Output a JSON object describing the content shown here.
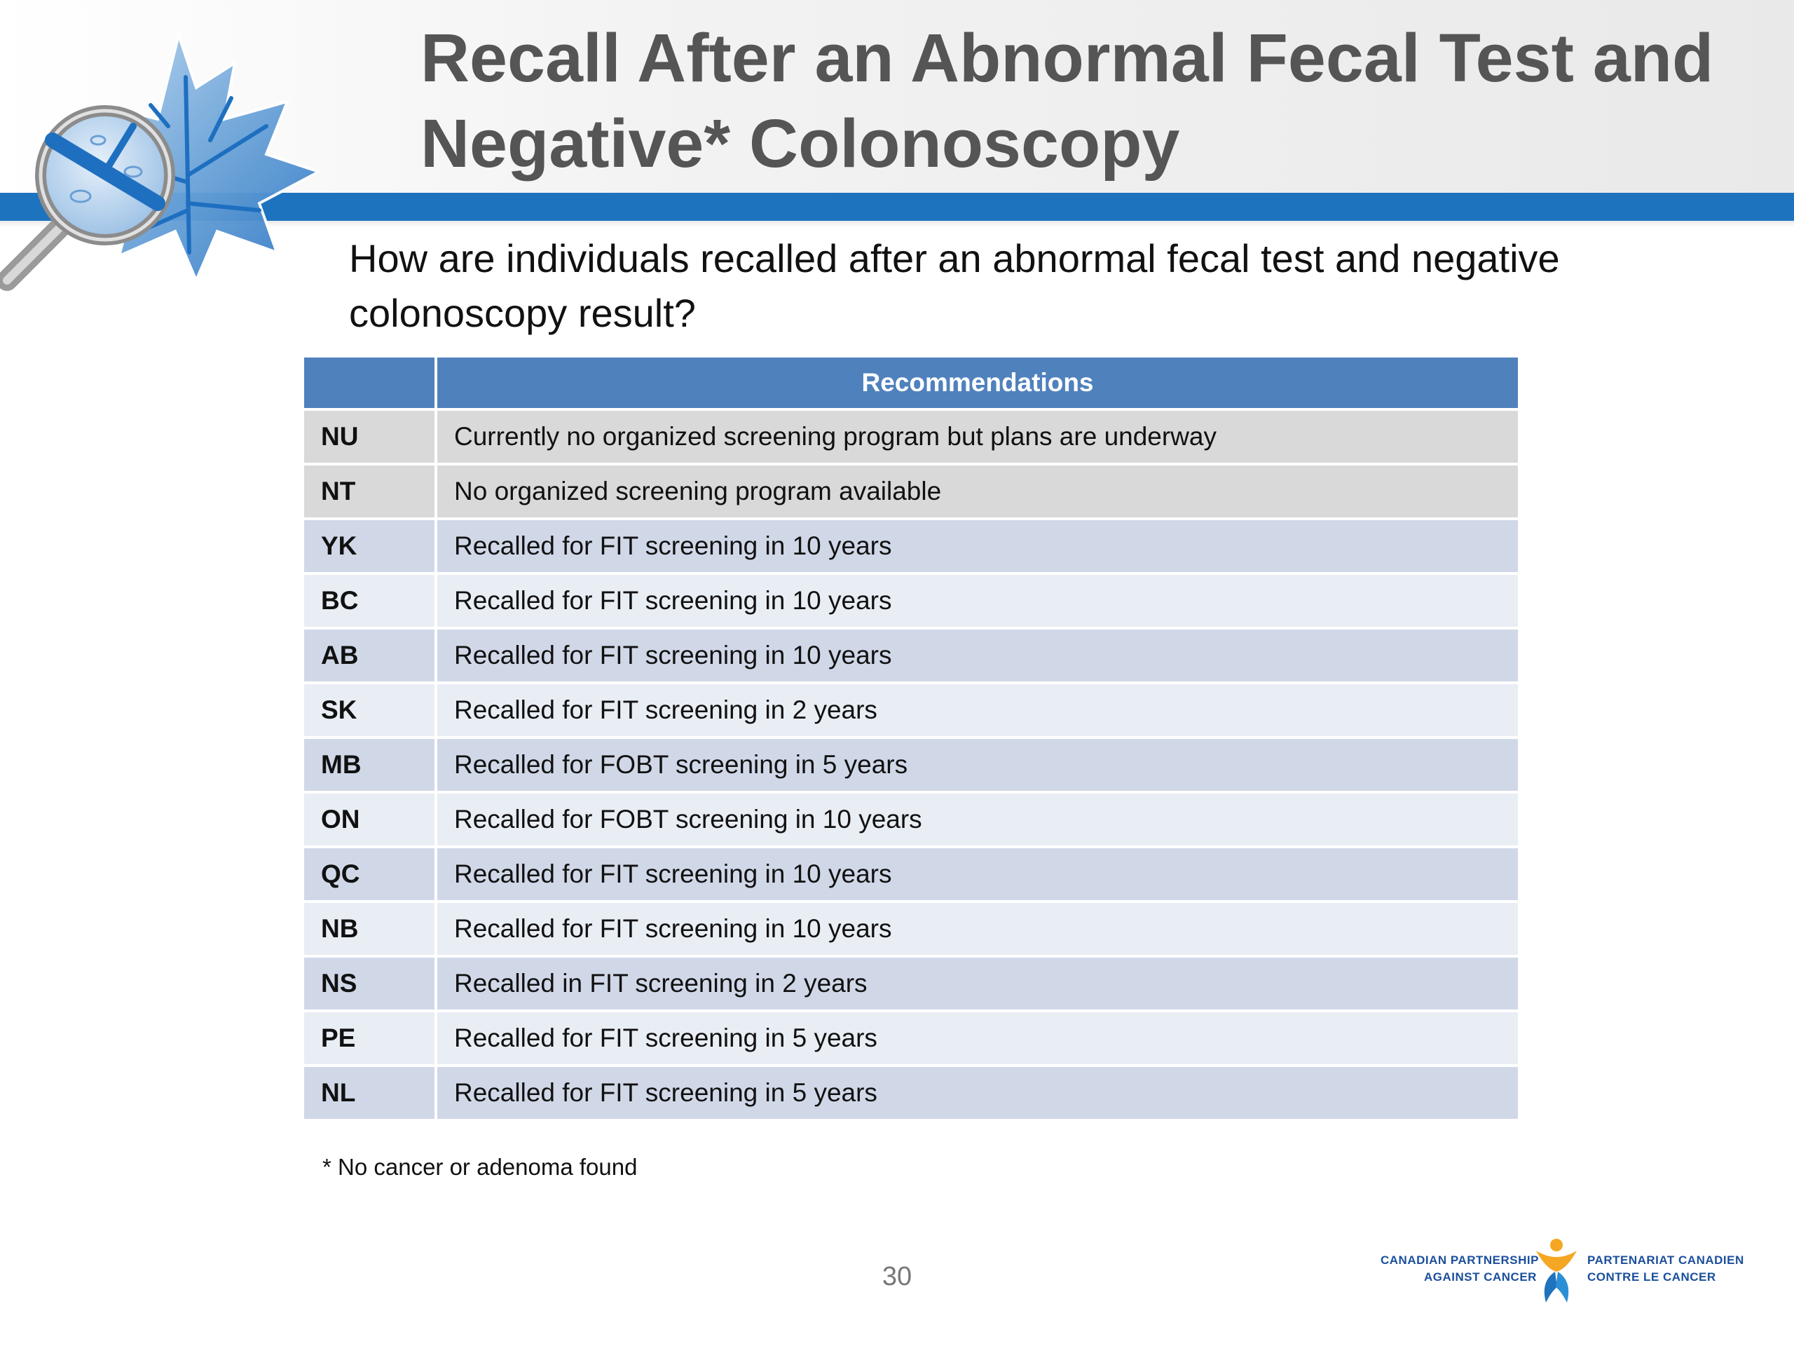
{
  "header": {
    "title": "Recall After an Abnormal Fecal Test and Negative* Colonoscopy"
  },
  "subtitle": "How are individuals recalled after an abnormal fecal test and negative colonoscopy result?",
  "table": {
    "column_headers": [
      "",
      "Recommendations"
    ],
    "rows": [
      {
        "code": "NU",
        "text": "Currently no organized screening program but plans are underway"
      },
      {
        "code": "NT",
        "text": "No organized screening program available"
      },
      {
        "code": "YK",
        "text": "Recalled for FIT screening in 10 years"
      },
      {
        "code": "BC",
        "text": "Recalled for FIT screening in 10 years"
      },
      {
        "code": "AB",
        "text": "Recalled for FIT screening in 10 years"
      },
      {
        "code": "SK",
        "text": "Recalled for FIT screening in 2 years"
      },
      {
        "code": "MB",
        "text": "Recalled for FOBT screening in 5 years"
      },
      {
        "code": "ON",
        "text": "Recalled for FOBT screening in 10 years"
      },
      {
        "code": "QC",
        "text": "Recalled for FIT screening in 10 years"
      },
      {
        "code": "NB",
        "text": "Recalled for FIT screening in 10 years"
      },
      {
        "code": "NS",
        "text": "Recalled in FIT screening in 2 years"
      },
      {
        "code": "PE",
        "text": "Recalled for FIT screening in 5 years"
      },
      {
        "code": "NL",
        "text": "Recalled for FIT screening in 5 years"
      }
    ]
  },
  "footnote": "* No cancer or adenoma found",
  "page_number": "30",
  "partner_logo": {
    "en_line1": "CANADIAN PARTNERSHIP",
    "en_line2": "AGAINST CANCER",
    "fr_line1": "PARTENARIAT CANADIEN",
    "fr_line2": "CONTRE LE CANCER"
  },
  "icons": {
    "header_art": "maple-leaf-magnifier-icon",
    "partner_symbol": "partnership-figure-icon"
  },
  "colors": {
    "header_band": "#1e73be",
    "table_header": "#4f81bd",
    "row_dark": "#d0d8e8",
    "row_light": "#e9edf4",
    "row_gray": "#d9d9d9",
    "title_text": "#555555",
    "logo_blue": "#1b4f9c",
    "logo_orange": "#f5a623"
  }
}
